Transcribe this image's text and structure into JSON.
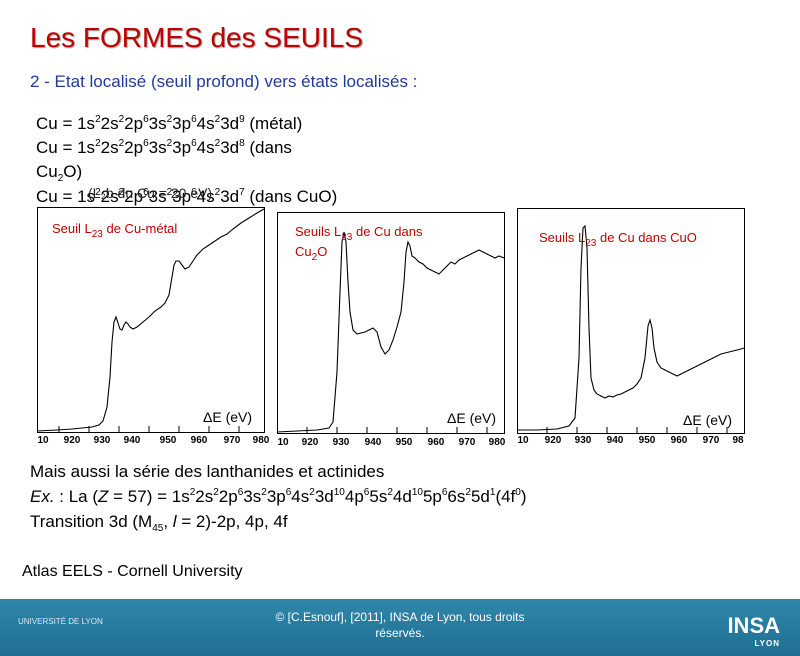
{
  "title": "Les FORMES des SEUILS",
  "subtitle": "2 - Etat localisé (seuil profond) vers états localisés :",
  "configs": {
    "c1": {
      "pre": "Cu = 1s",
      "post": " (métal)"
    },
    "c2": {
      "pre": "Cu = 1s",
      "post": " (dans"
    },
    "c2b": "Cu",
    "c2c": "O)",
    "c3": {
      "pre": "Cu = 1s",
      "post": " (dans CuO)"
    }
  },
  "overlay_note": "(L₂b du Cu = 20 eV)",
  "plots": [
    {
      "label_main": "Seuil L",
      "label_sub": "23",
      "label_rest": " de Cu-métal",
      "axis_unit": "ΔE (eV)",
      "ticks": [
        "10",
        "920",
        "930",
        "940",
        "950",
        "960",
        "970",
        "980"
      ]
    },
    {
      "label_main": "Seuils L",
      "label_sub": "23",
      "label_rest": " de Cu dans",
      "label_line2a": "Cu",
      "label_line2sub": "2",
      "label_line2b": "O",
      "axis_unit": "ΔE (eV)",
      "ticks": [
        "10",
        "920",
        "930",
        "940",
        "950",
        "960",
        "970",
        "980"
      ]
    },
    {
      "label_main": "Seuils L",
      "label_sub": "23",
      "label_rest": " de Cu dans CuO",
      "axis_unit": "ΔE (eV)",
      "ticks": [
        "10",
        "920",
        "930",
        "940",
        "950",
        "960",
        "970",
        "98"
      ]
    }
  ],
  "bottom": {
    "line1": "Mais aussi la série des lanthanides et actinides",
    "ex_prefix": "Ex.",
    "ex_mid": " : La (",
    "ex_z": "Z",
    "ex_eq": " = 57) = 1s",
    "line3a": "Transition 3d (M",
    "line3sub": "45",
    "line3b": ", ",
    "line3l": "l",
    "line3c": " = 2)-2p, 4p, 4f"
  },
  "atlas": "Atlas EELS - Cornell University",
  "footer": {
    "line1": "© [C.Esnouf], [2011], INSA de Lyon, tous droits",
    "line2": "réservés.",
    "logo_left_1": "UNIVERSITÉ DE LYON",
    "logo_insa": "INSA",
    "logo_insa_sub": "LYON"
  }
}
